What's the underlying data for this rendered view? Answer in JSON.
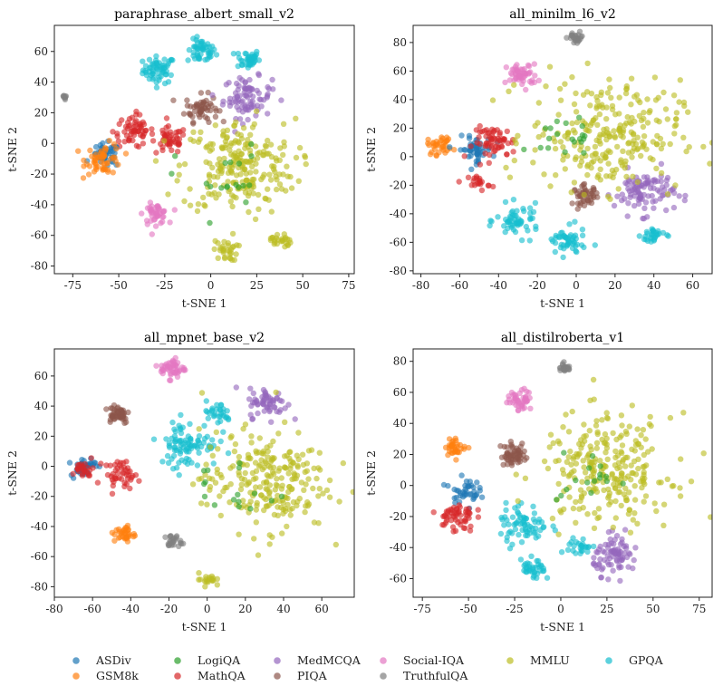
{
  "chart_data": [
    {
      "type": "scatter",
      "title": "paraphrase_albert_small_v2",
      "xlabel": "t-SNE 1",
      "ylabel": "t-SNE 2",
      "xlim": [
        -85,
        78
      ],
      "ylim": [
        -85,
        77
      ],
      "xticks": [
        -75,
        -50,
        -25,
        0,
        25,
        50,
        75
      ],
      "yticks": [
        -80,
        -60,
        -40,
        -20,
        0,
        20,
        40,
        60
      ],
      "clusters": [
        {
          "dataset": "GPQA",
          "cx": -28,
          "cy": 48,
          "r": 8,
          "n": 60
        },
        {
          "dataset": "GPQA",
          "cx": -5,
          "cy": 60,
          "r": 7,
          "n": 50
        },
        {
          "dataset": "GPQA",
          "cx": 20,
          "cy": 55,
          "r": 6,
          "n": 40
        },
        {
          "dataset": "TruthfulQA",
          "cx": -79,
          "cy": 30,
          "r": 2,
          "n": 8
        },
        {
          "dataset": "PIQA",
          "cx": -5,
          "cy": 23,
          "r": 8,
          "n": 55
        },
        {
          "dataset": "MedMCQA",
          "cx": 20,
          "cy": 30,
          "r": 12,
          "n": 85
        },
        {
          "dataset": "MathQA",
          "cx": -42,
          "cy": 8,
          "r": 10,
          "n": 60
        },
        {
          "dataset": "MathQA",
          "cx": -22,
          "cy": 2,
          "r": 8,
          "n": 45
        },
        {
          "dataset": "ASDiv",
          "cx": -57,
          "cy": -8,
          "r": 7,
          "n": 40
        },
        {
          "dataset": "GSM8k",
          "cx": -58,
          "cy": -10,
          "r": 9,
          "n": 55
        },
        {
          "dataset": "Social-IQA",
          "cx": -30,
          "cy": -46,
          "r": 6,
          "n": 45
        },
        {
          "dataset": "MMLU",
          "cx": 15,
          "cy": -15,
          "r": 28,
          "n": 230
        },
        {
          "dataset": "MMLU",
          "cx": 8,
          "cy": -70,
          "r": 6,
          "n": 30
        },
        {
          "dataset": "MMLU",
          "cx": 38,
          "cy": -63,
          "r": 5,
          "n": 25
        },
        {
          "dataset": "LogiQA",
          "cx": 5,
          "cy": -25,
          "r": 22,
          "n": 18
        }
      ]
    },
    {
      "type": "scatter",
      "title": "all_minilm_l6_v2",
      "xlabel": "t-SNE 1",
      "ylabel": "t-SNE 2",
      "xlim": [
        -84,
        70
      ],
      "ylim": [
        -82,
        92
      ],
      "xticks": [
        -80,
        -60,
        -40,
        -20,
        0,
        20,
        40,
        60
      ],
      "yticks": [
        -80,
        -60,
        -40,
        -20,
        0,
        20,
        40,
        60,
        80
      ],
      "clusters": [
        {
          "dataset": "TruthfulQA",
          "cx": 0,
          "cy": 83,
          "r": 4,
          "n": 25
        },
        {
          "dataset": "Social-IQA",
          "cx": -28,
          "cy": 57,
          "r": 7,
          "n": 55
        },
        {
          "dataset": "GSM8k",
          "cx": -70,
          "cy": 8,
          "r": 6,
          "n": 35
        },
        {
          "dataset": "ASDiv",
          "cx": -52,
          "cy": 5,
          "r": 8,
          "n": 50
        },
        {
          "dataset": "MathQA",
          "cx": -42,
          "cy": 10,
          "r": 10,
          "n": 60
        },
        {
          "dataset": "MathQA",
          "cx": -50,
          "cy": -18,
          "r": 5,
          "n": 20
        },
        {
          "dataset": "PIQA",
          "cx": 5,
          "cy": -27,
          "r": 6,
          "n": 45
        },
        {
          "dataset": "MedMCQA",
          "cx": 35,
          "cy": -25,
          "r": 14,
          "n": 95
        },
        {
          "dataset": "GPQA",
          "cx": -30,
          "cy": -45,
          "r": 10,
          "n": 55
        },
        {
          "dataset": "GPQA",
          "cx": -5,
          "cy": -60,
          "r": 9,
          "n": 50
        },
        {
          "dataset": "GPQA",
          "cx": 40,
          "cy": -55,
          "r": 6,
          "n": 30
        },
        {
          "dataset": "MMLU",
          "cx": 15,
          "cy": 15,
          "r": 35,
          "n": 260
        },
        {
          "dataset": "LogiQA",
          "cx": -5,
          "cy": 15,
          "r": 12,
          "n": 20
        }
      ]
    },
    {
      "type": "scatter",
      "title": "all_mpnet_base_v2",
      "xlabel": "t-SNE 1",
      "ylabel": "t-SNE 2",
      "xlim": [
        -80,
        77
      ],
      "ylim": [
        -87,
        78
      ],
      "xticks": [
        -80,
        -60,
        -40,
        -20,
        0,
        20,
        40,
        60
      ],
      "yticks": [
        -80,
        -60,
        -40,
        -20,
        0,
        20,
        40,
        60
      ],
      "clusters": [
        {
          "dataset": "Social-IQA",
          "cx": -18,
          "cy": 65,
          "r": 6,
          "n": 50
        },
        {
          "dataset": "PIQA",
          "cx": -47,
          "cy": 35,
          "r": 6,
          "n": 50
        },
        {
          "dataset": "MedMCQA",
          "cx": 32,
          "cy": 42,
          "r": 9,
          "n": 60
        },
        {
          "dataset": "GPQA",
          "cx": -10,
          "cy": 15,
          "r": 14,
          "n": 90
        },
        {
          "dataset": "GPQA",
          "cx": 5,
          "cy": 35,
          "r": 7,
          "n": 30
        },
        {
          "dataset": "ASDiv",
          "cx": -65,
          "cy": 0,
          "r": 6,
          "n": 40
        },
        {
          "dataset": "MathQA",
          "cx": -45,
          "cy": -5,
          "r": 8,
          "n": 45
        },
        {
          "dataset": "MathQA",
          "cx": -65,
          "cy": -2,
          "r": 5,
          "n": 25
        },
        {
          "dataset": "GSM8k",
          "cx": -43,
          "cy": -45,
          "r": 5,
          "n": 35
        },
        {
          "dataset": "TruthfulQA",
          "cx": -18,
          "cy": -50,
          "r": 4,
          "n": 25
        },
        {
          "dataset": "MMLU",
          "cx": 30,
          "cy": -10,
          "r": 30,
          "n": 240
        },
        {
          "dataset": "MMLU",
          "cx": 0,
          "cy": -75,
          "r": 4,
          "n": 20
        },
        {
          "dataset": "LogiQA",
          "cx": 15,
          "cy": -15,
          "r": 20,
          "n": 16
        }
      ]
    },
    {
      "type": "scatter",
      "title": "all_distilroberta_v1",
      "xlabel": "t-SNE 1",
      "ylabel": "t-SNE 2",
      "xlim": [
        -80,
        82
      ],
      "ylim": [
        -72,
        88
      ],
      "xticks": [
        -75,
        -50,
        -25,
        0,
        25,
        50,
        75
      ],
      "yticks": [
        -60,
        -40,
        -20,
        0,
        20,
        40,
        60,
        80
      ],
      "clusters": [
        {
          "dataset": "TruthfulQA",
          "cx": 2,
          "cy": 76,
          "r": 3,
          "n": 25
        },
        {
          "dataset": "Social-IQA",
          "cx": -22,
          "cy": 55,
          "r": 6,
          "n": 45
        },
        {
          "dataset": "GSM8k",
          "cx": -57,
          "cy": 25,
          "r": 5,
          "n": 35
        },
        {
          "dataset": "PIQA",
          "cx": -25,
          "cy": 20,
          "r": 7,
          "n": 55
        },
        {
          "dataset": "ASDiv",
          "cx": -52,
          "cy": -3,
          "r": 7,
          "n": 40
        },
        {
          "dataset": "MathQA",
          "cx": -57,
          "cy": -20,
          "r": 9,
          "n": 55
        },
        {
          "dataset": "GPQA",
          "cx": -20,
          "cy": -25,
          "r": 12,
          "n": 70
        },
        {
          "dataset": "GPQA",
          "cx": -15,
          "cy": -55,
          "r": 6,
          "n": 35
        },
        {
          "dataset": "GPQA",
          "cx": 10,
          "cy": -40,
          "r": 6,
          "n": 25
        },
        {
          "dataset": "MedMCQA",
          "cx": 30,
          "cy": -45,
          "r": 11,
          "n": 80
        },
        {
          "dataset": "MMLU",
          "cx": 25,
          "cy": 10,
          "r": 32,
          "n": 260
        },
        {
          "dataset": "LogiQA",
          "cx": 15,
          "cy": 5,
          "r": 15,
          "n": 16
        }
      ]
    }
  ],
  "legend": [
    {
      "name": "ASDiv",
      "color": "#1f77b4"
    },
    {
      "name": "GSM8k",
      "color": "#ff7f0e"
    },
    {
      "name": "LogiQA",
      "color": "#2ca02c"
    },
    {
      "name": "MathQA",
      "color": "#d62728"
    },
    {
      "name": "MedMCQA",
      "color": "#9467bd"
    },
    {
      "name": "PIQA",
      "color": "#8c564b"
    },
    {
      "name": "Social-IQA",
      "color": "#e377c2"
    },
    {
      "name": "TruthfulQA",
      "color": "#7f7f7f"
    },
    {
      "name": "MMLU",
      "color": "#bcbd22"
    },
    {
      "name": "GPQA",
      "color": "#17becf"
    }
  ]
}
